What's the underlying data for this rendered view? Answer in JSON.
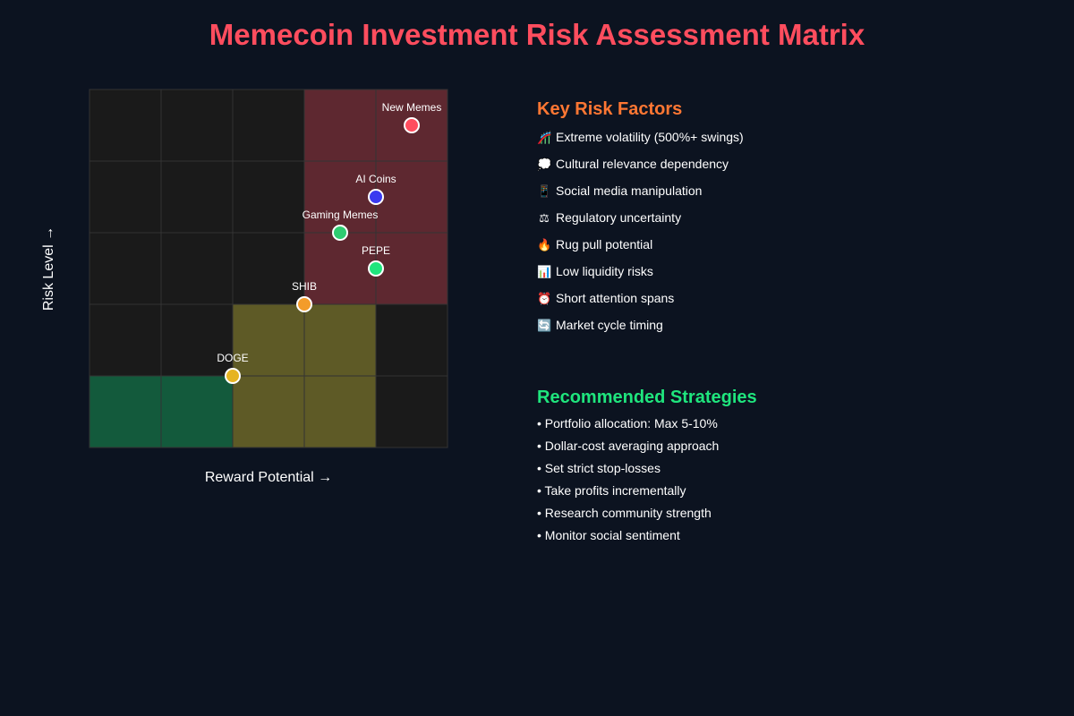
{
  "title": "Memecoin Investment Risk Assessment Matrix",
  "chart_data": {
    "type": "scatter",
    "grid": true,
    "grid_size": [
      5,
      5
    ],
    "xlabel": "Reward Potential",
    "xlabel_arrow": "→",
    "ylabel": "Risk Level",
    "ylabel_arrow": "→",
    "xlim": [
      0,
      5
    ],
    "ylim": [
      0,
      5
    ],
    "zones": [
      {
        "x": [
          3,
          5
        ],
        "y": [
          2,
          5
        ],
        "color": "#5e2830"
      },
      {
        "x": [
          2,
          4
        ],
        "y": [
          0,
          2
        ],
        "color": "#5e5a26"
      },
      {
        "x": [
          0,
          2
        ],
        "y": [
          0,
          1
        ],
        "color": "#135a3c"
      }
    ],
    "points": [
      {
        "label": "New Memes",
        "x": 4.5,
        "y": 4.5,
        "color": "#ff4d5e"
      },
      {
        "label": "AI Coins",
        "x": 4.0,
        "y": 3.5,
        "color": "#3a3af0"
      },
      {
        "label": "Gaming Memes",
        "x": 3.5,
        "y": 3.0,
        "color": "#2ecc71"
      },
      {
        "label": "PEPE",
        "x": 4.0,
        "y": 2.5,
        "color": "#1fe57d"
      },
      {
        "label": "SHIB",
        "x": 3.0,
        "y": 2.0,
        "color": "#f39c2a"
      },
      {
        "label": "DOGE",
        "x": 2.0,
        "y": 1.0,
        "color": "#e6b422"
      }
    ]
  },
  "risk_factors": {
    "heading": "Key Risk Factors",
    "items": [
      {
        "icon": "🎢",
        "icon_name": "roller-coaster-icon",
        "text": "Extreme volatility (500%+ swings)"
      },
      {
        "icon": "💭",
        "icon_name": "thought-bubble-icon",
        "text": "Cultural relevance dependency"
      },
      {
        "icon": "📱",
        "icon_name": "phone-icon",
        "text": "Social media manipulation"
      },
      {
        "icon": "⚖",
        "icon_name": "scales-icon",
        "text": "Regulatory uncertainty"
      },
      {
        "icon": "🔥",
        "icon_name": "fire-icon",
        "text": "Rug pull potential"
      },
      {
        "icon": "📊",
        "icon_name": "bar-chart-icon",
        "text": "Low liquidity risks"
      },
      {
        "icon": "⏰",
        "icon_name": "alarm-clock-icon",
        "text": "Short attention spans"
      },
      {
        "icon": "🔄",
        "icon_name": "cycle-arrows-icon",
        "text": "Market cycle timing"
      }
    ]
  },
  "strategies": {
    "heading": "Recommended Strategies",
    "bullet": "•",
    "items": [
      "Portfolio allocation: Max 5-10%",
      "Dollar-cost averaging approach",
      "Set strict stop-losses",
      "Take profits incrementally",
      "Research community strength",
      "Monitor social sentiment"
    ]
  }
}
